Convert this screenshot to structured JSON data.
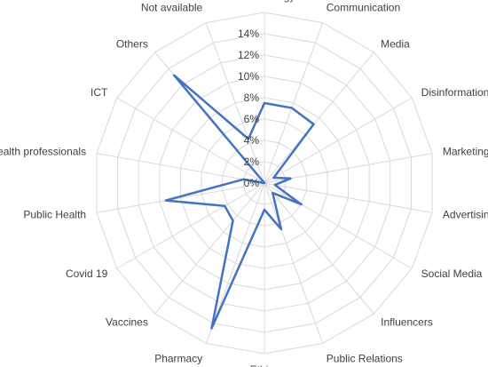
{
  "chart_data": {
    "type": "radar",
    "categories": [
      "Methodology",
      "Communication",
      "Media",
      "Disinformation",
      "Marketing",
      "Advertising",
      "Social Media",
      "Influencers",
      "Public Relations",
      "Ethics",
      "Pharmacy",
      "Vaccines",
      "Covid 19",
      "Public Health",
      "Health professionals",
      "ICT",
      "Others",
      "Not available"
    ],
    "series": [
      {
        "values": [
          7.5,
          7.5,
          7.2,
          1.0,
          2.5,
          1.0,
          4.0,
          1.2,
          4.6,
          2.5,
          14.5,
          4.6,
          4.3,
          9.4,
          2.0,
          0.0,
          13.2,
          4.4
        ]
      }
    ],
    "rticks": [
      "0%",
      "2%",
      "4%",
      "6%",
      "8%",
      "10%",
      "12%",
      "14%"
    ],
    "rlim": [
      0,
      16
    ],
    "grid": true,
    "legend": "none",
    "colors": {
      "series": "#4472C4",
      "grid": "#d9d9d9",
      "text": "#404040"
    }
  }
}
